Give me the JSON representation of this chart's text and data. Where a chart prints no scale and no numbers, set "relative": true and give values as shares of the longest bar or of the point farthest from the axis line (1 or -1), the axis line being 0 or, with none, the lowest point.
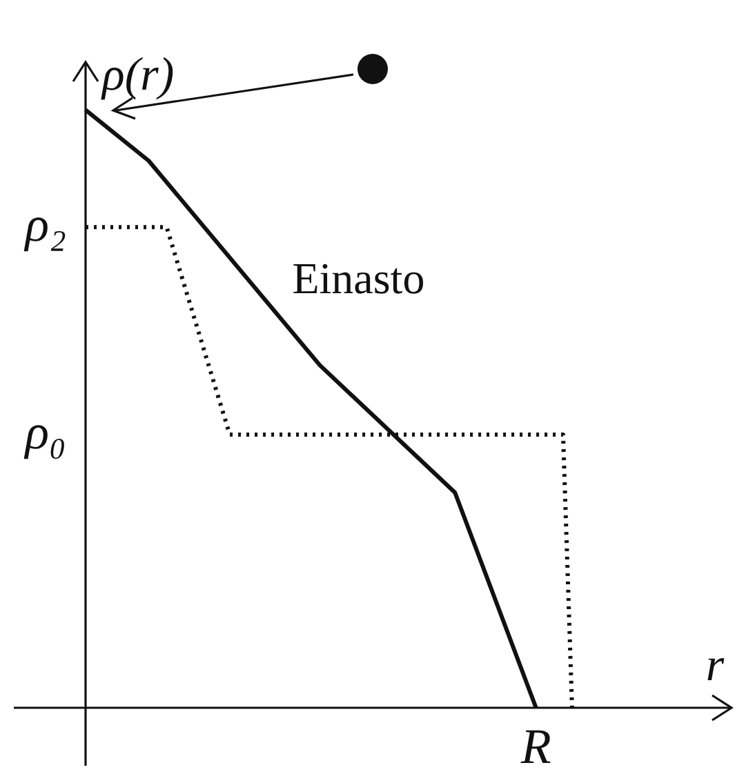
{
  "chart_data": {
    "type": "line",
    "relative": true,
    "xlabel": "r",
    "ylabel": "ρ(r)",
    "marker": "none",
    "legend": false,
    "categories": [
      null,
      null,
      null,
      null,
      null,
      null,
      null,
      null,
      null,
      null,
      null,
      null,
      null,
      null,
      null,
      null,
      null,
      null,
      null,
      null,
      null,
      null,
      null,
      null,
      null,
      null,
      null,
      null,
      null,
      null,
      null,
      null,
      null,
      null,
      null,
      null,
      null,
      null,
      null,
      null,
      null,
      null,
      null,
      null,
      null,
      null,
      null,
      null,
      null,
      null,
      null,
      null,
      null,
      null,
      null,
      null
    ],
    "series": [
      {
        "name": "Einasto",
        "color": "#111111",
        "line_style": "solid",
        "values": [
          1,
          null,
          null,
          null,
          null,
          null,
          null,
          0.915,
          null,
          null,
          null,
          null,
          null,
          null,
          null,
          null,
          null,
          null,
          null,
          null,
          null,
          null,
          null,
          null,
          null,
          null,
          0.573,
          null,
          null,
          null,
          null,
          null,
          null,
          null,
          null,
          null,
          null,
          null,
          null,
          null,
          null,
          0.36,
          null,
          null,
          null,
          null,
          null,
          null,
          null,
          null,
          0,
          null,
          null,
          null,
          null,
          null
        ]
      },
      {
        "color": "#111111",
        "line_style": "dotted",
        "values": [
          0.804,
          null,
          null,
          null,
          null,
          null,
          null,
          null,
          null,
          0.804,
          null,
          null,
          null,
          null,
          null,
          null,
          0.457,
          null,
          null,
          null,
          null,
          null,
          null,
          null,
          null,
          null,
          null,
          null,
          null,
          null,
          null,
          null,
          null,
          null,
          null,
          null,
          null,
          null,
          null,
          null,
          null,
          null,
          null,
          null,
          null,
          null,
          null,
          null,
          null,
          null,
          null,
          null,
          null,
          0.457,
          0,
          null
        ]
      }
    ],
    "annotations": [
      "ρ₂",
      "ρ₀",
      "R"
    ]
  }
}
